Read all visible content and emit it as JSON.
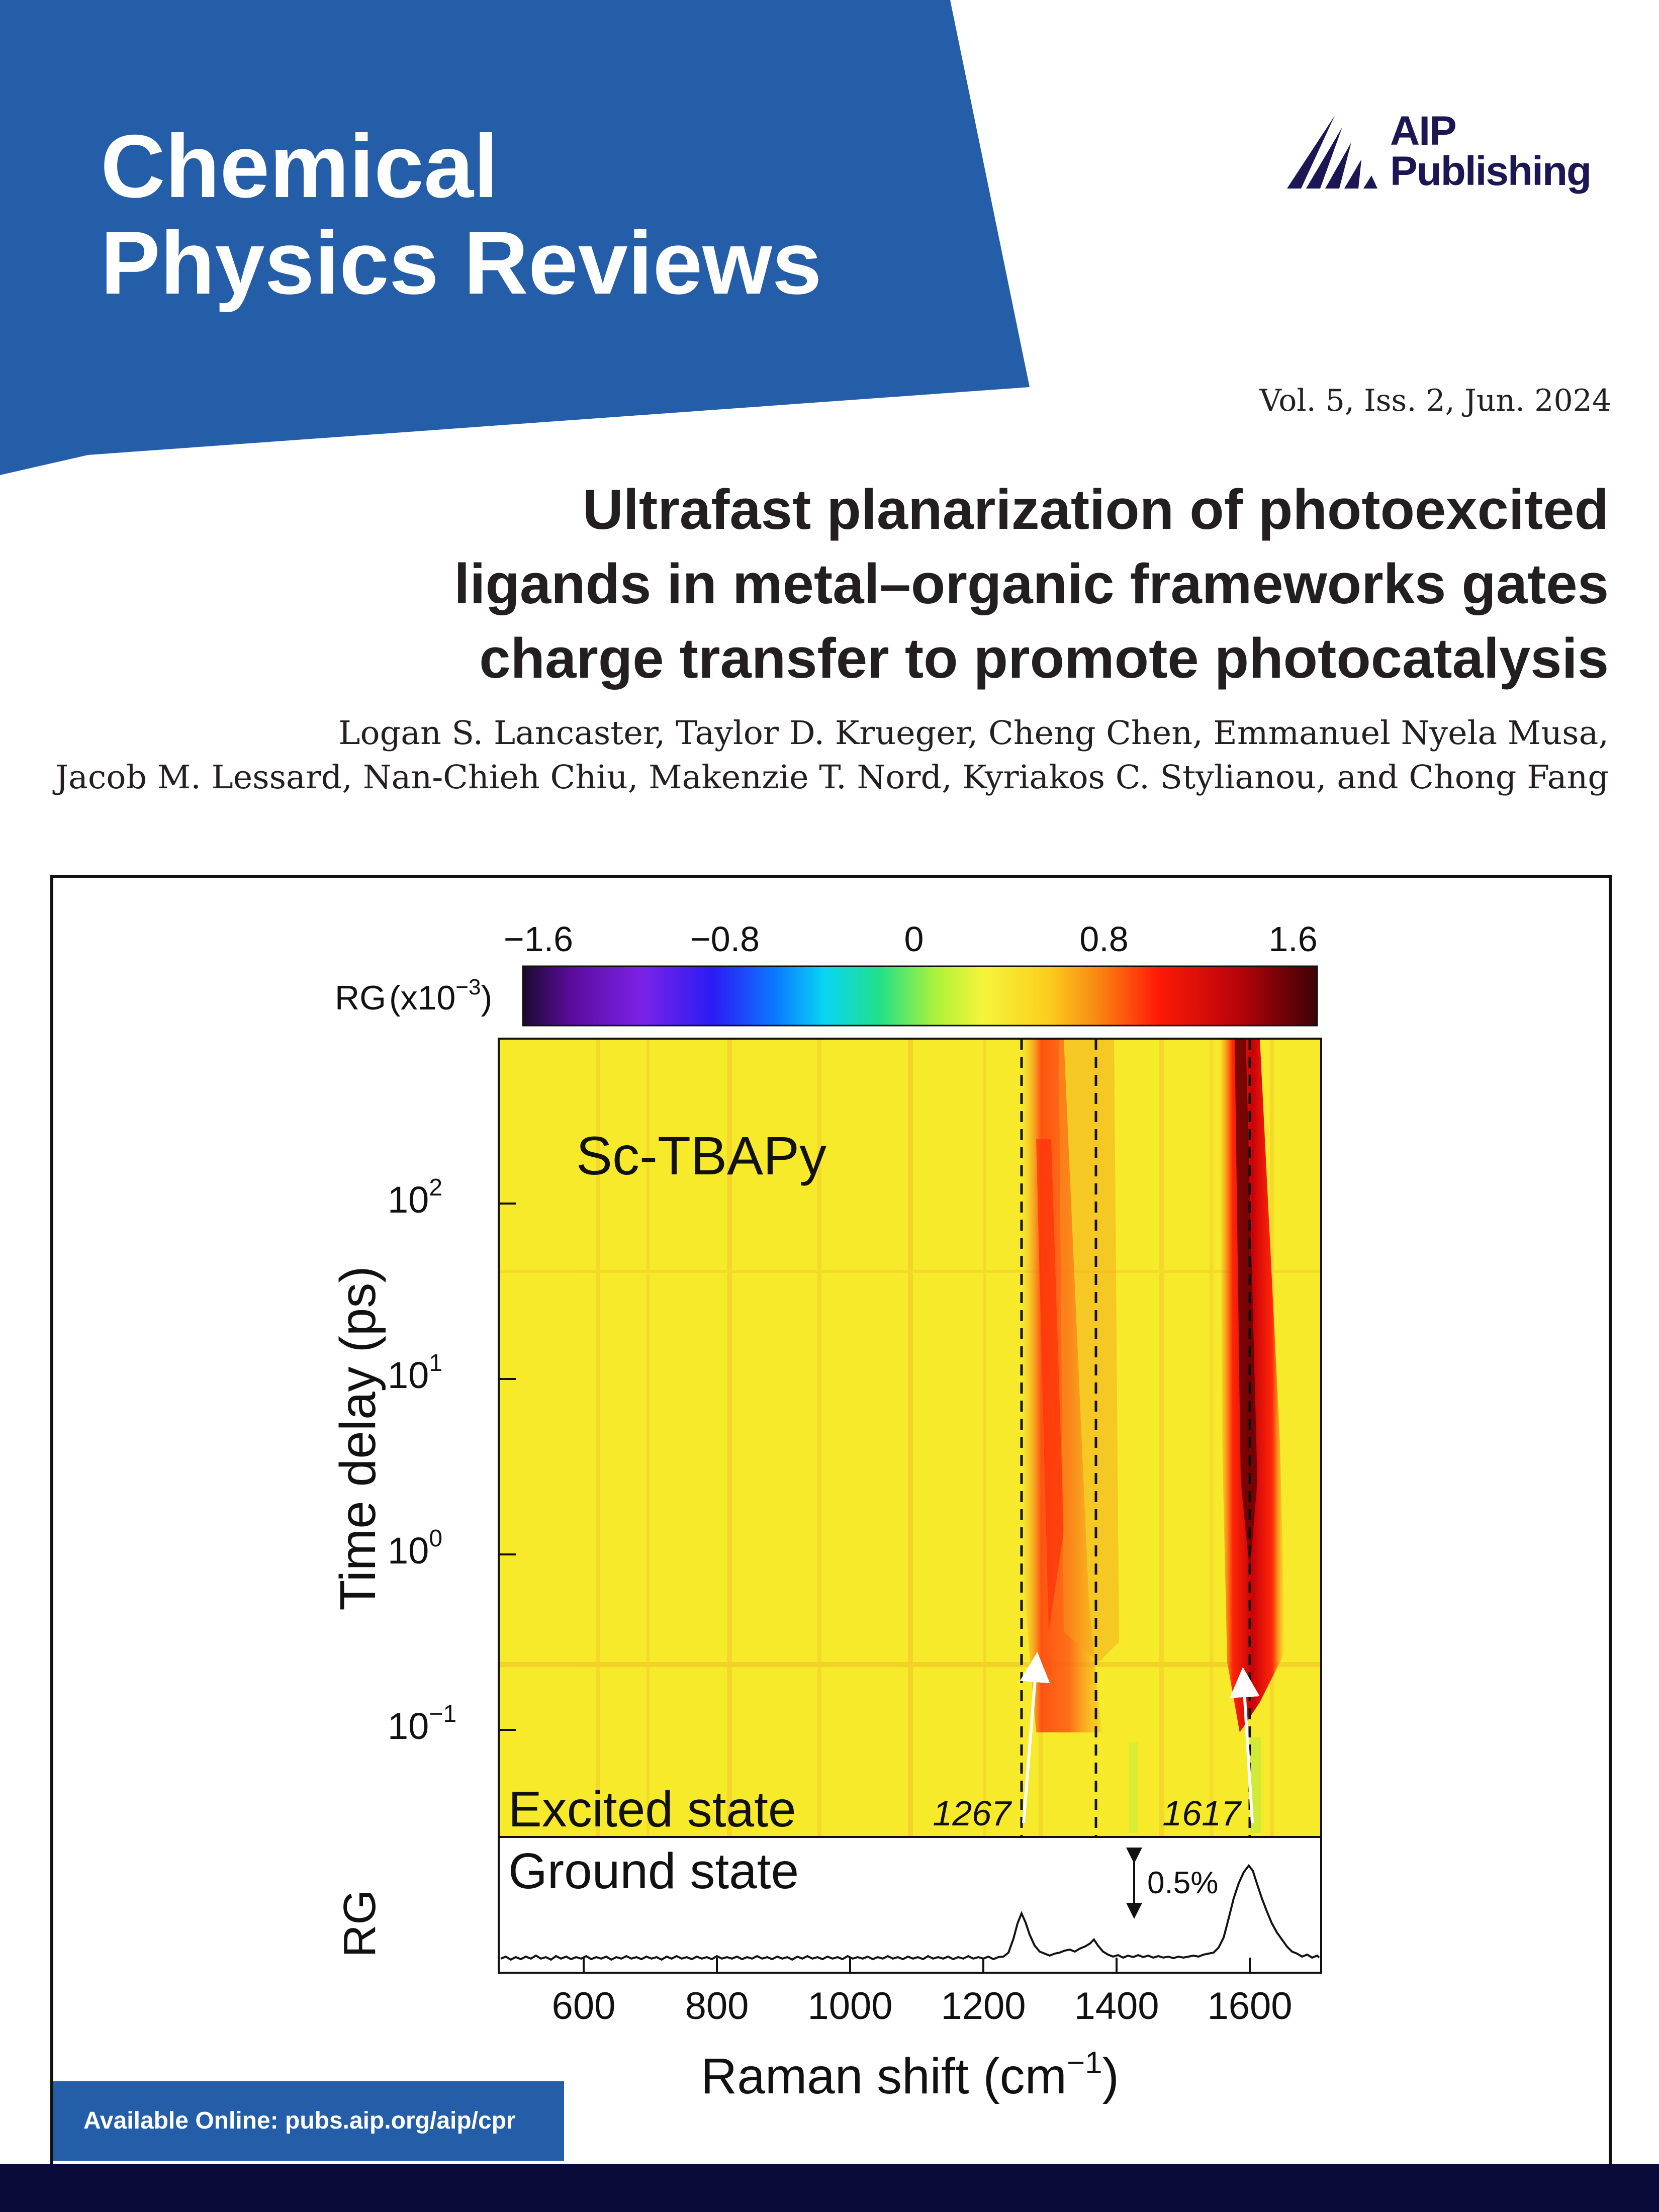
{
  "cover": {
    "journal_line1": "Chemical",
    "journal_line2": "Physics Reviews",
    "publisher_line1": "AIP",
    "publisher_line2": "Publishing",
    "issue": "Vol. 5, Iss. 2, Jun. 2024",
    "title_lines": [
      "Ultrafast planarization of photoexcited",
      "ligands in metal–organic frameworks gates",
      "charge transfer to promote photocatalysis"
    ],
    "author_lines": [
      "Logan S. Lancaster, Taylor D. Krueger, Cheng Chen, Emmanuel Nyela Musa,",
      "Jacob M. Lessard, Nan-Chieh Chiu, Makenzie T. Nord, Kyriakos C. Stylianou, and Chong Fang"
    ],
    "availability": "Available Online: pubs.aip.org/aip/cpr",
    "colors": {
      "banner": "#255ea8",
      "footer": "#0b0b3b",
      "logo": "#1a1754"
    }
  },
  "figure": {
    "colorbar": {
      "label": "RG",
      "unit": "(x10",
      "unit_exp": "−3",
      "unit_close": ")",
      "ticks": [
        "−1.6",
        "−0.8",
        "0",
        "0.8",
        "1.6"
      ]
    },
    "sample_label": "Sc-TBAPy",
    "excited_label": "Excited state",
    "ground_label": "Ground state",
    "scale_label": "0.5%",
    "peak_labels": [
      "1267",
      "1617"
    ],
    "y_axis": {
      "label": "Time delay (ps)",
      "tick_base": "10",
      "tick_exponents": [
        "2",
        "1",
        "0",
        "−1"
      ]
    },
    "rg_axis_label": "RG",
    "x_axis": {
      "label_main": "Raman shift (cm",
      "label_exp": "−1",
      "label_close": ")",
      "ticks": [
        "600",
        "800",
        "1000",
        "1200",
        "1400",
        "1600"
      ]
    }
  }
}
